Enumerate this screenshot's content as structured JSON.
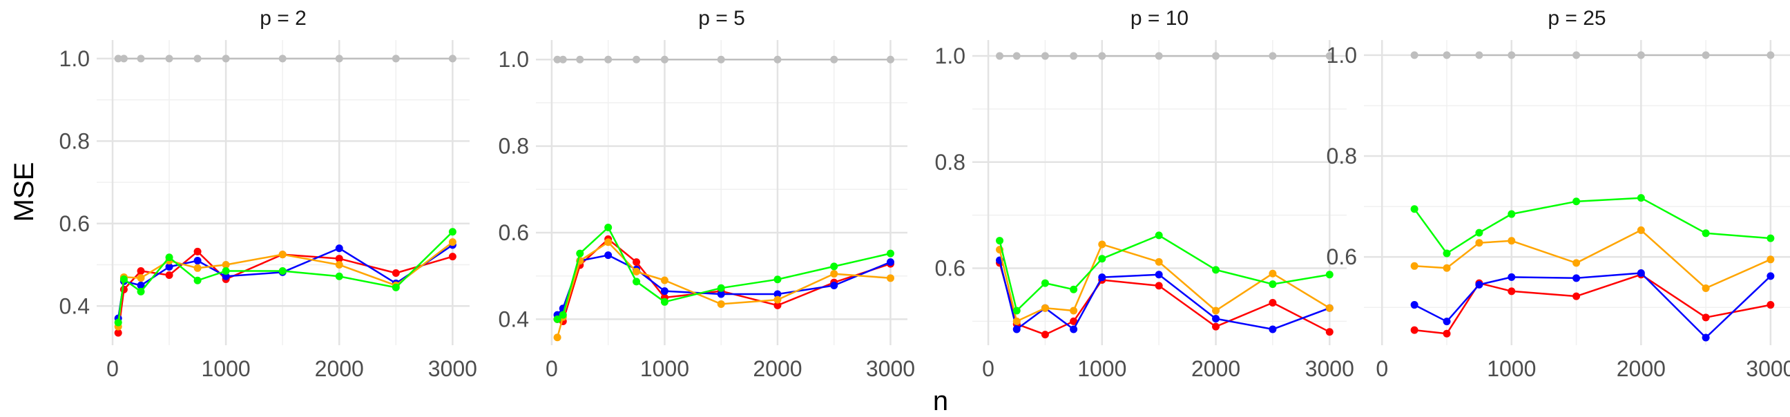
{
  "chart_data": {
    "type": "line",
    "xlabel": "n",
    "ylabel": "MSE",
    "grid": true,
    "legend": "none",
    "panels": [
      {
        "title": "p = 2",
        "xlim": [
          -140,
          3150
        ],
        "ylim": [
          0.305,
          1.045
        ],
        "xticks": [
          0,
          1000,
          2000,
          3000
        ],
        "yticks": [
          0.4,
          0.6,
          0.8,
          1.0
        ],
        "ytick_labels": [
          "0.4",
          "0.6",
          "0.8",
          "1.0"
        ],
        "series": [
          {
            "color": "#bebebe",
            "x": [
              50,
              100,
              250,
              500,
              750,
              1000,
              1500,
              2000,
              2500,
              3000
            ],
            "y": [
              1.0,
              1.0,
              1.0,
              1.0,
              1.0,
              1.0,
              1.0,
              1.0,
              1.0,
              1.0
            ]
          },
          {
            "color": "#ff0000",
            "x": [
              50,
              100,
              250,
              500,
              750,
              1000,
              1500,
              2000,
              2500,
              3000
            ],
            "y": [
              0.335,
              0.44,
              0.485,
              0.475,
              0.532,
              0.465,
              0.525,
              0.515,
              0.48,
              0.52
            ]
          },
          {
            "color": "#0000ff",
            "x": [
              50,
              100,
              250,
              500,
              750,
              1000,
              1500,
              2000,
              2500,
              3000
            ],
            "y": [
              0.37,
              0.46,
              0.45,
              0.495,
              0.51,
              0.472,
              0.482,
              0.54,
              0.455,
              0.548
            ]
          },
          {
            "color": "#ffa500",
            "x": [
              50,
              100,
              250,
              500,
              750,
              1000,
              1500,
              2000,
              2500,
              3000
            ],
            "y": [
              0.35,
              0.47,
              0.468,
              0.51,
              0.492,
              0.5,
              0.525,
              0.5,
              0.45,
              0.555
            ]
          },
          {
            "color": "#00ff00",
            "x": [
              50,
              100,
              250,
              500,
              750,
              1000,
              1500,
              2000,
              2500,
              3000
            ],
            "y": [
              0.36,
              0.465,
              0.435,
              0.518,
              0.462,
              0.485,
              0.485,
              0.472,
              0.445,
              0.58
            ]
          }
        ]
      },
      {
        "title": "p = 5",
        "xlim": [
          -140,
          3150
        ],
        "ylim": [
          0.34,
          1.045
        ],
        "xticks": [
          0,
          1000,
          2000,
          3000
        ],
        "yticks": [
          0.4,
          0.6,
          0.8,
          1.0
        ],
        "ytick_labels": [
          "0.4",
          "0.6",
          "0.8",
          "1.0"
        ],
        "series": [
          {
            "color": "#bebebe",
            "x": [
              50,
              100,
              250,
              500,
              750,
              1000,
              1500,
              2000,
              2500,
              3000
            ],
            "y": [
              1.0,
              1.0,
              1.0,
              1.0,
              1.0,
              1.0,
              1.0,
              1.0,
              1.0,
              1.0
            ]
          },
          {
            "color": "#ff0000",
            "x": [
              50,
              100,
              250,
              500,
              750,
              1000,
              1500,
              2000,
              2500,
              3000
            ],
            "y": [
              0.4,
              0.395,
              0.525,
              0.585,
              0.532,
              0.45,
              0.465,
              0.432,
              0.485,
              0.528
            ]
          },
          {
            "color": "#0000ff",
            "x": [
              50,
              100,
              250,
              500,
              750,
              1000,
              1500,
              2000,
              2500,
              3000
            ],
            "y": [
              0.41,
              0.425,
              0.535,
              0.548,
              0.515,
              0.465,
              0.458,
              0.458,
              0.478,
              0.532
            ]
          },
          {
            "color": "#ffa500",
            "x": [
              50,
              100,
              250,
              500,
              750,
              1000,
              1500,
              2000,
              2500,
              3000
            ],
            "y": [
              0.358,
              0.405,
              0.535,
              0.578,
              0.51,
              0.49,
              0.435,
              0.445,
              0.505,
              0.495
            ]
          },
          {
            "color": "#00ff00",
            "x": [
              50,
              100,
              250,
              500,
              750,
              1000,
              1500,
              2000,
              2500,
              3000
            ],
            "y": [
              0.4,
              0.41,
              0.552,
              0.612,
              0.487,
              0.44,
              0.472,
              0.492,
              0.522,
              0.552
            ]
          }
        ]
      },
      {
        "title": "p = 10",
        "xlim": [
          -140,
          3150
        ],
        "ylim": [
          0.455,
          1.03
        ],
        "xticks": [
          0,
          1000,
          2000,
          3000
        ],
        "yticks": [
          0.6,
          0.8,
          1.0
        ],
        "ytick_labels": [
          "0.6",
          "0.8",
          "1.0"
        ],
        "series": [
          {
            "color": "#bebebe",
            "x": [
              100,
              250,
              500,
              750,
              1000,
              1500,
              2000,
              2500,
              3000
            ],
            "y": [
              1.0,
              1.0,
              1.0,
              1.0,
              1.0,
              1.0,
              1.0,
              1.0,
              1.0
            ]
          },
          {
            "color": "#ff0000",
            "x": [
              100,
              250,
              500,
              750,
              1000,
              1500,
              2000,
              2500,
              3000
            ],
            "y": [
              0.61,
              0.495,
              0.475,
              0.5,
              0.578,
              0.567,
              0.49,
              0.535,
              0.48
            ]
          },
          {
            "color": "#0000ff",
            "x": [
              100,
              250,
              500,
              750,
              1000,
              1500,
              2000,
              2500,
              3000
            ],
            "y": [
              0.615,
              0.485,
              0.525,
              0.485,
              0.583,
              0.588,
              0.505,
              0.485,
              0.525
            ]
          },
          {
            "color": "#ffa500",
            "x": [
              100,
              250,
              500,
              750,
              1000,
              1500,
              2000,
              2500,
              3000
            ],
            "y": [
              0.635,
              0.5,
              0.525,
              0.52,
              0.645,
              0.612,
              0.52,
              0.59,
              0.525
            ]
          },
          {
            "color": "#00ff00",
            "x": [
              100,
              250,
              500,
              750,
              1000,
              1500,
              2000,
              2500,
              3000
            ],
            "y": [
              0.652,
              0.52,
              0.572,
              0.56,
              0.618,
              0.662,
              0.597,
              0.57,
              0.588
            ]
          }
        ]
      },
      {
        "title": "p = 25",
        "xlim": [
          -140,
          3150
        ],
        "ylim": [
          0.425,
          1.03
        ],
        "xticks": [
          0,
          1000,
          2000,
          3000
        ],
        "yticks": [
          0.6,
          0.8,
          1.0
        ],
        "ytick_labels": [
          "0.6",
          "0.8",
          "1.0"
        ],
        "series": [
          {
            "color": "#bebebe",
            "x": [
              250,
              500,
              750,
              1000,
              1500,
              2000,
              2500,
              3000
            ],
            "y": [
              1.0,
              1.0,
              1.0,
              1.0,
              1.0,
              1.0,
              1.0,
              1.0
            ]
          },
          {
            "color": "#ff0000",
            "x": [
              250,
              500,
              750,
              1000,
              1500,
              2000,
              2500,
              3000
            ],
            "y": [
              0.455,
              0.448,
              0.548,
              0.532,
              0.522,
              0.565,
              0.48,
              0.505
            ]
          },
          {
            "color": "#0000ff",
            "x": [
              250,
              500,
              750,
              1000,
              1500,
              2000,
              2500,
              3000
            ],
            "y": [
              0.505,
              0.472,
              0.545,
              0.56,
              0.558,
              0.568,
              0.44,
              0.562
            ]
          },
          {
            "color": "#ffa500",
            "x": [
              250,
              500,
              750,
              1000,
              1500,
              2000,
              2500,
              3000
            ],
            "y": [
              0.582,
              0.578,
              0.628,
              0.632,
              0.588,
              0.653,
              0.538,
              0.595
            ]
          },
          {
            "color": "#00ff00",
            "x": [
              250,
              500,
              750,
              1000,
              1500,
              2000,
              2500,
              3000
            ],
            "y": [
              0.695,
              0.607,
              0.648,
              0.685,
              0.71,
              0.717,
              0.647,
              0.637
            ]
          }
        ]
      }
    ]
  }
}
